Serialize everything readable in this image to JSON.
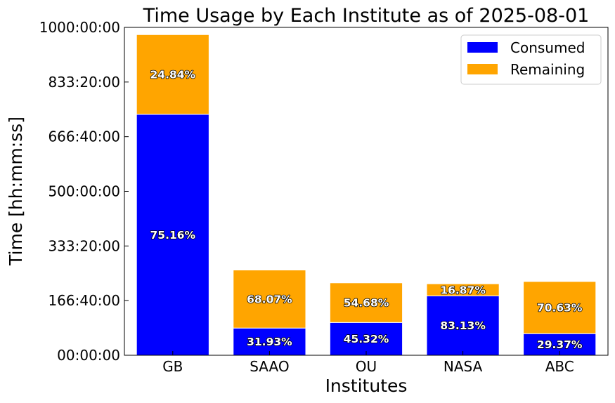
{
  "chart_data": {
    "type": "bar",
    "stacked": true,
    "title": "Time Usage by Each Institute as of 2025-08-01",
    "xlabel": "Institutes",
    "ylabel": "Time [hh:mm:ss]",
    "categories": [
      "GB",
      "SAAO",
      "OU",
      "NASA",
      "ABC"
    ],
    "unit": "hours",
    "ylim": [
      0,
      1000
    ],
    "yticks": [
      0,
      166.667,
      333.333,
      500,
      666.667,
      833.333,
      1000
    ],
    "ytick_labels": [
      "00:00:00",
      "166:40:00",
      "333:20:00",
      "500:00:00",
      "666:40:00",
      "833:20:00",
      "1000:00:00"
    ],
    "series": [
      {
        "name": "Consumed",
        "color": "#0000ff",
        "values": [
          735,
          83,
          100,
          181,
          66
        ],
        "labels": [
          "75.16%",
          "31.93%",
          "45.32%",
          "83.13%",
          "29.37%"
        ]
      },
      {
        "name": "Remaining",
        "color": "#ffa500",
        "values": [
          243,
          177,
          121,
          37,
          159
        ],
        "labels": [
          "24.84%",
          "68.07%",
          "54.68%",
          "16.87%",
          "70.63%"
        ]
      }
    ],
    "legend": "top-right",
    "grid": false
  }
}
